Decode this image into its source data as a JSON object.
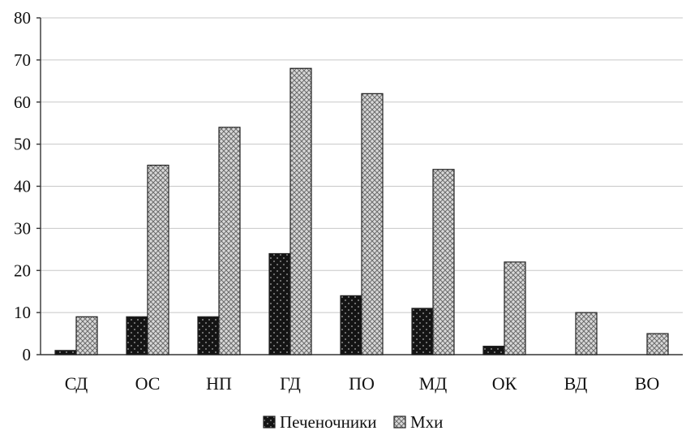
{
  "chart_data": {
    "type": "bar",
    "categories": [
      "СД",
      "ОС",
      "НП",
      "ГД",
      "ПО",
      "МД",
      "ОК",
      "ВД",
      "ВО"
    ],
    "series": [
      {
        "name": "Печеночники",
        "values": [
          1,
          9,
          9,
          24,
          14,
          11,
          2,
          0,
          0
        ],
        "color": "#1a1a1a",
        "pattern": "dark-dots"
      },
      {
        "name": "Мхи",
        "values": [
          9,
          45,
          54,
          68,
          62,
          44,
          22,
          10,
          5
        ],
        "color": "#bdbdbd",
        "pattern": "crosshatch"
      }
    ],
    "ylim": [
      0,
      80
    ],
    "yticks": [
      0,
      10,
      20,
      30,
      40,
      50,
      60,
      70,
      80
    ],
    "grid": true,
    "legend_position": "bottom"
  }
}
